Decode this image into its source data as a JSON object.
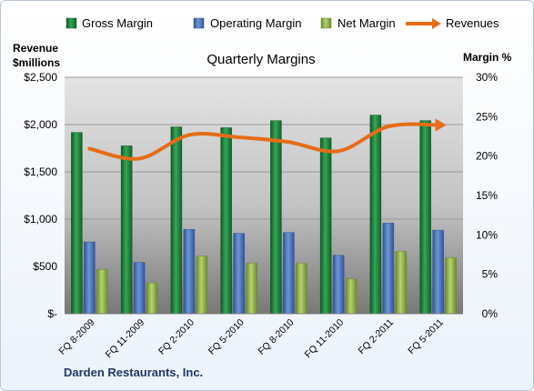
{
  "chart_data": {
    "type": "bar",
    "title": "Quarterly Margins",
    "company": "Darden Restaurants, Inc.",
    "left_axis": {
      "label_line1": "Revenue",
      "label_line2": "$millions",
      "ylim": [
        0,
        2500
      ],
      "ticks": [
        "$-",
        "$500",
        "$1,000",
        "$1,500",
        "$2,000",
        "$2,500"
      ]
    },
    "right_axis": {
      "label": "Margin %",
      "ylim": [
        0,
        30
      ],
      "ticks": [
        "0%",
        "5%",
        "10%",
        "15%",
        "20%",
        "25%",
        "30%"
      ]
    },
    "categories": [
      "FQ 8-2009",
      "FQ 11-2009",
      "FQ 2-2010",
      "FQ 5-2010",
      "FQ 8-2010",
      "FQ 11-2010",
      "FQ 2-2011",
      "FQ 5-2011"
    ],
    "series": [
      {
        "name": "Gross Margin",
        "type": "bar",
        "axis": "right",
        "color": "#217a3c",
        "values": [
          23.0,
          21.3,
          23.7,
          23.6,
          24.5,
          22.3,
          25.2,
          24.5
        ]
      },
      {
        "name": "Operating Margin",
        "type": "bar",
        "axis": "right",
        "color": "#4a72b8",
        "values": [
          9.1,
          6.5,
          10.7,
          10.2,
          10.3,
          7.4,
          11.5,
          10.6
        ]
      },
      {
        "name": "Net Margin",
        "type": "bar",
        "axis": "right",
        "color": "#8db050",
        "values": [
          5.6,
          3.9,
          7.3,
          6.4,
          6.4,
          4.4,
          7.9,
          7.1
        ]
      },
      {
        "name": "Revenues",
        "type": "line",
        "axis": "left",
        "color": "#e66c17",
        "values": [
          1745,
          1640,
          1890,
          1865,
          1815,
          1720,
          1980,
          1995
        ]
      }
    ],
    "grid": true,
    "legend_position": "top"
  }
}
